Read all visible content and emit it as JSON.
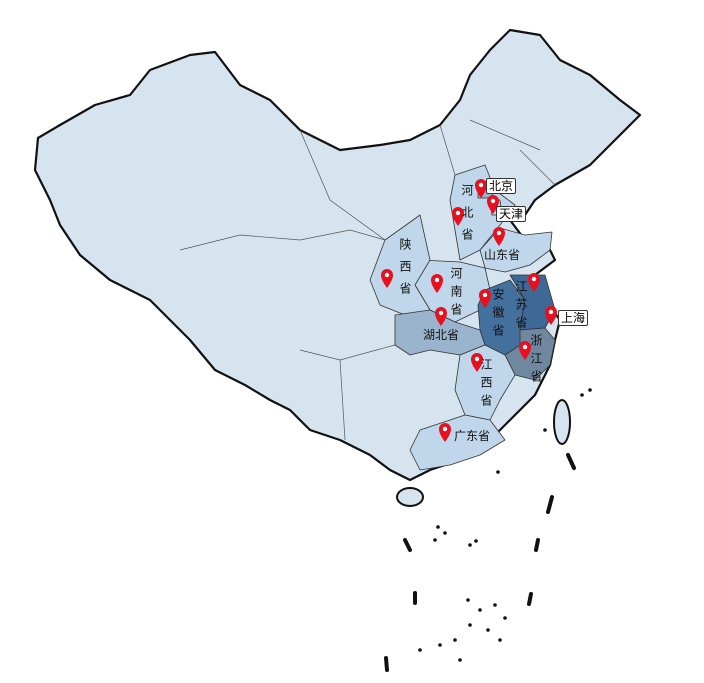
{
  "colors": {
    "base": "#d6e4ef",
    "light": "#c0d6ea",
    "medium": "#9bb4cd",
    "dark": "#44709e",
    "slate": "#6f879f",
    "marker": "#e8101f",
    "border": "#111111"
  },
  "regions": {
    "beijing": "北京",
    "tianjin": "天津",
    "shanghai": "上海",
    "hebei": "河北省",
    "shandong": "山东省",
    "shaanxi": "陕西省",
    "henan": "河南省",
    "anhui": "安徽省",
    "jiangsu": "江苏省",
    "hubei": "湖北省",
    "zhejiang": "浙江省",
    "jiangxi": "江西省",
    "guangdong": "广东省"
  },
  "marker_icon": "map-pin-icon"
}
